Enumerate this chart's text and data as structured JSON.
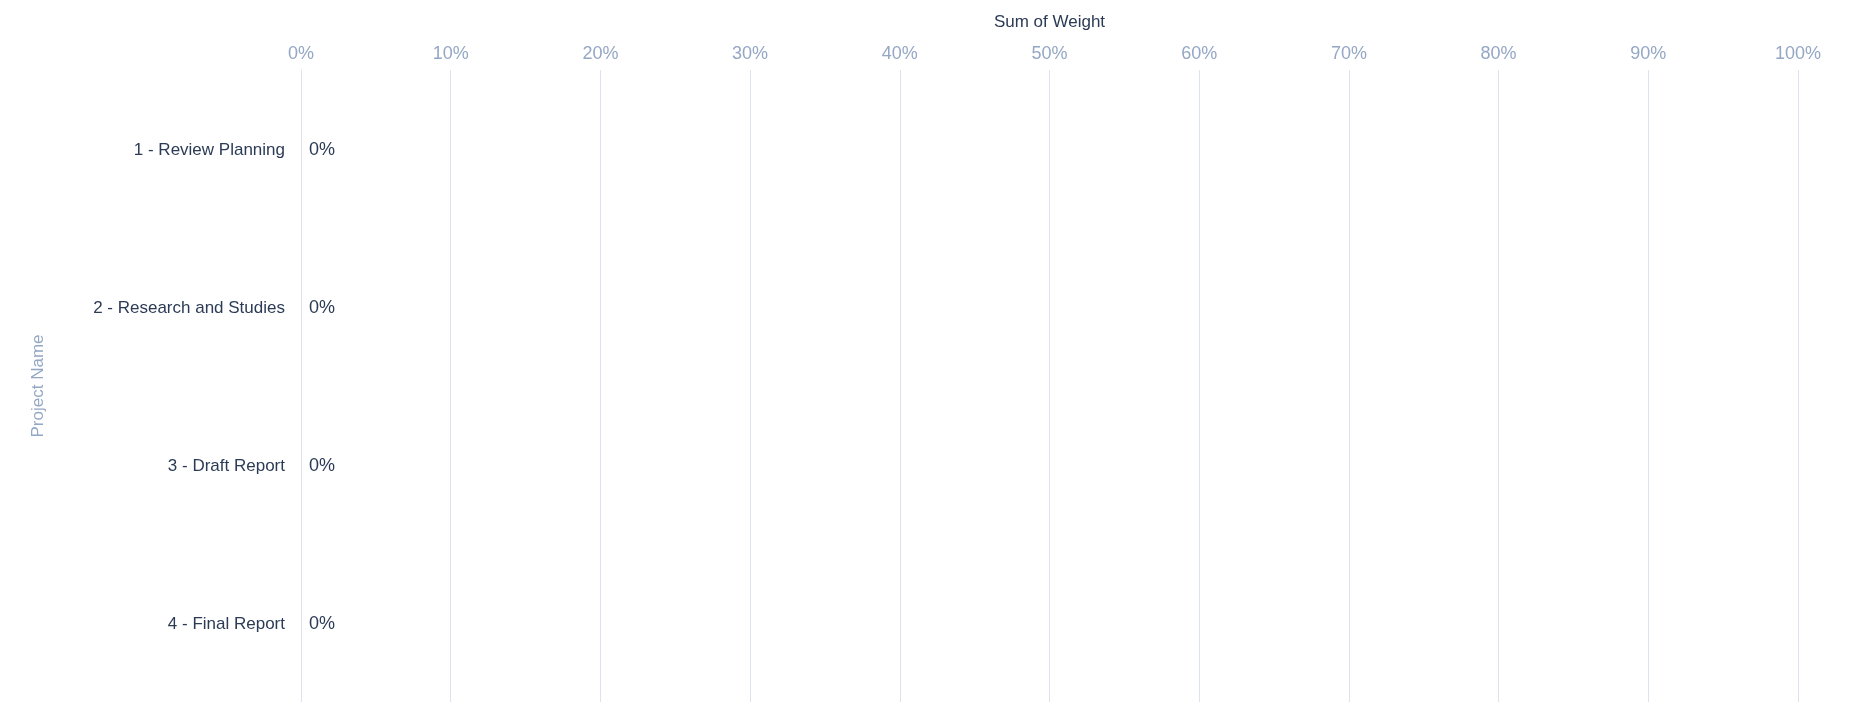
{
  "chart_data": {
    "type": "bar",
    "orientation": "horizontal",
    "xlabel": "Sum of Weight",
    "ylabel": "Project Name",
    "categories": [
      "1 - Review Planning",
      "2 - Research and Studies",
      "3 - Draft Report",
      "4 - Final Report"
    ],
    "values": [
      0,
      0,
      0,
      0
    ],
    "value_labels": [
      "0%",
      "0%",
      "0%",
      "0%"
    ],
    "xlim": [
      0,
      100
    ],
    "xticks": [
      {
        "value": 0,
        "label": "0%"
      },
      {
        "value": 10,
        "label": "10%"
      },
      {
        "value": 20,
        "label": "20%"
      },
      {
        "value": 30,
        "label": "30%"
      },
      {
        "value": 40,
        "label": "40%"
      },
      {
        "value": 50,
        "label": "50%"
      },
      {
        "value": 60,
        "label": "60%"
      },
      {
        "value": 70,
        "label": "70%"
      },
      {
        "value": 80,
        "label": "80%"
      },
      {
        "value": 90,
        "label": "90%"
      },
      {
        "value": 100,
        "label": "100%"
      }
    ],
    "grid": "x"
  }
}
